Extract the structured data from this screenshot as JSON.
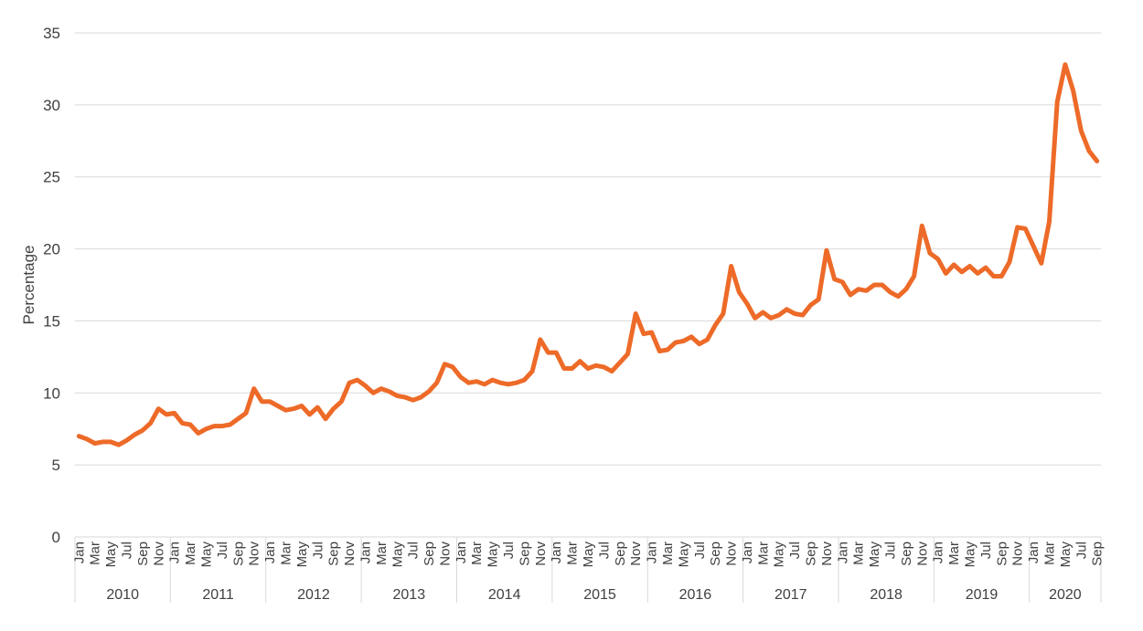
{
  "chart_data": {
    "type": "line",
    "title": "",
    "xlabel": "",
    "ylabel": "Percentage",
    "ylim": [
      0,
      35
    ],
    "yticks": [
      0,
      5,
      10,
      15,
      20,
      25,
      30,
      35
    ],
    "grid": true,
    "legend": null,
    "line_color": "#ED6A28",
    "grid_color": "#D9D9D9",
    "years": [
      "2010",
      "2011",
      "2012",
      "2013",
      "2014",
      "2015",
      "2016",
      "2017",
      "2018",
      "2019",
      "2020"
    ],
    "month_tick_labels": [
      "Jan",
      "Mar",
      "May",
      "Jul",
      "Sep",
      "Nov"
    ],
    "series": [
      {
        "name": "Percentage",
        "values": [
          7.0,
          6.8,
          6.5,
          6.6,
          6.6,
          6.4,
          6.7,
          7.1,
          7.4,
          7.9,
          8.9,
          8.5,
          8.6,
          7.9,
          7.8,
          7.2,
          7.5,
          7.7,
          7.7,
          7.8,
          8.2,
          8.6,
          10.3,
          9.4,
          9.4,
          9.1,
          8.8,
          8.9,
          9.1,
          8.5,
          9.0,
          8.2,
          8.9,
          9.4,
          10.7,
          10.9,
          10.5,
          10.0,
          10.3,
          10.1,
          9.8,
          9.7,
          9.5,
          9.7,
          10.1,
          10.7,
          12.0,
          11.8,
          11.1,
          10.7,
          10.8,
          10.6,
          10.9,
          10.7,
          10.6,
          10.7,
          10.9,
          11.5,
          13.7,
          12.8,
          12.8,
          11.7,
          11.7,
          12.2,
          11.7,
          11.9,
          11.8,
          11.5,
          12.1,
          12.7,
          15.5,
          14.1,
          14.2,
          12.9,
          13.0,
          13.5,
          13.6,
          13.9,
          13.4,
          13.7,
          14.7,
          15.5,
          18.8,
          17.0,
          16.2,
          15.2,
          15.6,
          15.2,
          15.4,
          15.8,
          15.5,
          15.4,
          16.1,
          16.5,
          19.9,
          17.9,
          17.7,
          16.8,
          17.2,
          17.1,
          17.5,
          17.5,
          17.0,
          16.7,
          17.2,
          18.1,
          21.6,
          19.7,
          19.3,
          18.3,
          18.9,
          18.4,
          18.8,
          18.3,
          18.7,
          18.1,
          18.1,
          19.1,
          21.5,
          21.4,
          20.2,
          19.0,
          21.9,
          30.2,
          32.8,
          31.0,
          28.2,
          26.8,
          26.1
        ]
      }
    ]
  }
}
